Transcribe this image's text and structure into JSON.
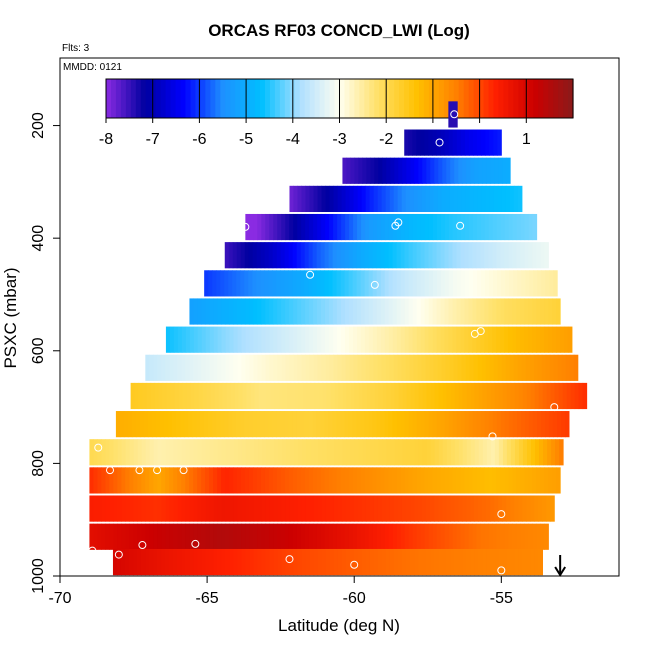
{
  "chart_data": {
    "type": "heatmap",
    "title": "ORCAS RF03 CONCD_LWI (Log)",
    "flights_label": "Flts: 3",
    "date_label": "MMDD: 0121",
    "xlabel": "Latitude (deg N)",
    "ylabel": "PSXC (mbar)",
    "xlim": [
      -70,
      -51
    ],
    "ylim": [
      1000,
      80
    ],
    "y_reversed": true,
    "x_ticks": [
      -70,
      -65,
      -60,
      -55
    ],
    "y_ticks": [
      200,
      400,
      600,
      800,
      1000
    ],
    "colorbar": {
      "range": [
        -8,
        2
      ],
      "ticks": [
        -8,
        -7,
        -6,
        -5,
        -4,
        -3,
        -2,
        -1,
        0,
        1
      ],
      "colors": [
        "#8a2be2",
        "#0000a0",
        "#0000ff",
        "#1e90ff",
        "#00bfff",
        "#b0e0ff",
        "#fffff0",
        "#ffe066",
        "#ffc000",
        "#ff8000",
        "#ff2000",
        "#cc0000",
        "#8b1a1a"
      ]
    },
    "rows": [
      {
        "p": 180,
        "lat": [
          -56.8,
          -56.5
        ],
        "values": [
          -7.4,
          -7.4
        ]
      },
      {
        "p": 230,
        "lat": [
          -58.3,
          -55.0
        ],
        "values": [
          -7.3,
          -7.0,
          -6.5,
          -6.2
        ]
      },
      {
        "p": 280,
        "lat": [
          -60.4,
          -54.7
        ],
        "values": [
          -7.6,
          -7.2,
          -6.5,
          -5.8,
          -5.2,
          -5.0
        ]
      },
      {
        "p": 330,
        "lat": [
          -62.2,
          -54.3
        ],
        "values": [
          -7.8,
          -7.1,
          -6.2,
          -5.5,
          -5.0,
          -4.8,
          -4.6
        ]
      },
      {
        "p": 380,
        "lat": [
          -63.7,
          -53.8
        ],
        "values": [
          -8.2,
          -7.3,
          -6.3,
          -5.3,
          -4.8,
          -4.5,
          -4.3,
          -4.1
        ]
      },
      {
        "p": 430,
        "lat": [
          -64.4,
          -53.4
        ],
        "values": [
          -7.5,
          -6.8,
          -5.8,
          -5.0,
          -4.4,
          -3.9,
          -3.5,
          -3.2
        ]
      },
      {
        "p": 480,
        "lat": [
          -65.1,
          -53.1
        ],
        "values": [
          -6.0,
          -5.5,
          -5.0,
          -4.3,
          -3.6,
          -3.1,
          -2.8,
          -2.5
        ]
      },
      {
        "p": 530,
        "lat": [
          -65.6,
          -53.0
        ],
        "values": [
          -5.2,
          -4.8,
          -4.3,
          -3.8,
          -3.2,
          -2.6,
          -2.1,
          -1.8
        ]
      },
      {
        "p": 580,
        "lat": [
          -66.4,
          -52.6
        ],
        "values": [
          -4.6,
          -4.0,
          -3.5,
          -3.0,
          -2.5,
          -1.9,
          -1.3,
          -0.9
        ]
      },
      {
        "p": 630,
        "lat": [
          -67.1,
          -52.4
        ],
        "values": [
          -3.6,
          -3.2,
          -2.8,
          -2.5,
          -2.1,
          -1.6,
          -1.0,
          -0.5
        ]
      },
      {
        "p": 680,
        "lat": [
          -67.6,
          -52.1
        ],
        "values": [
          -1.6,
          -1.9,
          -2.3,
          -2.2,
          -1.8,
          -1.2,
          -0.6,
          0.2
        ]
      },
      {
        "p": 730,
        "lat": [
          -68.1,
          -52.7
        ],
        "values": [
          -1.1,
          -1.4,
          -1.7,
          -1.8,
          -1.5,
          -1.0,
          -0.4,
          0.1
        ]
      },
      {
        "p": 780,
        "lat": [
          -69.0,
          -52.9
        ],
        "values": [
          -2.0,
          -2.6,
          -2.4,
          -2.2,
          -2.0,
          -1.8,
          -2.6,
          -0.5
        ]
      },
      {
        "p": 830,
        "lat": [
          -69.0,
          -53.0
        ],
        "values": [
          0.2,
          -1.0,
          0.3,
          -0.2,
          -0.6,
          -1.0,
          -1.3,
          -0.9
        ]
      },
      {
        "p": 880,
        "lat": [
          -69.0,
          -53.2
        ],
        "values": [
          0.4,
          0.2,
          0.6,
          0.4,
          0.2,
          0.0,
          -0.3,
          -0.8
        ]
      },
      {
        "p": 930,
        "lat": [
          -69.0,
          -53.4
        ],
        "values": [
          0.8,
          1.2,
          1.5,
          1.2,
          0.7,
          0.1,
          -0.4,
          -0.6
        ]
      },
      {
        "p": 975,
        "lat": [
          -68.2,
          -53.6
        ],
        "values": [
          1.0,
          0.6,
          0.3,
          0.0,
          -0.2,
          -0.4,
          -0.5,
          -0.6
        ]
      }
    ],
    "points": [
      {
        "lat": -56.6,
        "p": 180
      },
      {
        "lat": -57.1,
        "p": 230
      },
      {
        "lat": -63.7,
        "p": 380
      },
      {
        "lat": -58.6,
        "p": 378
      },
      {
        "lat": -58.5,
        "p": 372
      },
      {
        "lat": -56.4,
        "p": 378
      },
      {
        "lat": -61.5,
        "p": 465
      },
      {
        "lat": -59.3,
        "p": 483
      },
      {
        "lat": -55.9,
        "p": 570
      },
      {
        "lat": -55.7,
        "p": 565
      },
      {
        "lat": -53.2,
        "p": 700
      },
      {
        "lat": -55.3,
        "p": 752
      },
      {
        "lat": -68.7,
        "p": 772
      },
      {
        "lat": -68.3,
        "p": 812
      },
      {
        "lat": -67.3,
        "p": 812
      },
      {
        "lat": -66.7,
        "p": 812
      },
      {
        "lat": -65.8,
        "p": 812
      },
      {
        "lat": -55.0,
        "p": 890
      },
      {
        "lat": -67.2,
        "p": 945
      },
      {
        "lat": -65.4,
        "p": 943
      },
      {
        "lat": -68.9,
        "p": 955
      },
      {
        "lat": -68.0,
        "p": 962
      },
      {
        "lat": -62.2,
        "p": 970
      },
      {
        "lat": -60.0,
        "p": 980
      },
      {
        "lat": -55.0,
        "p": 990
      }
    ],
    "marker": {
      "lat": -53.0,
      "p": 1000,
      "symbol": "down-arrow"
    }
  }
}
